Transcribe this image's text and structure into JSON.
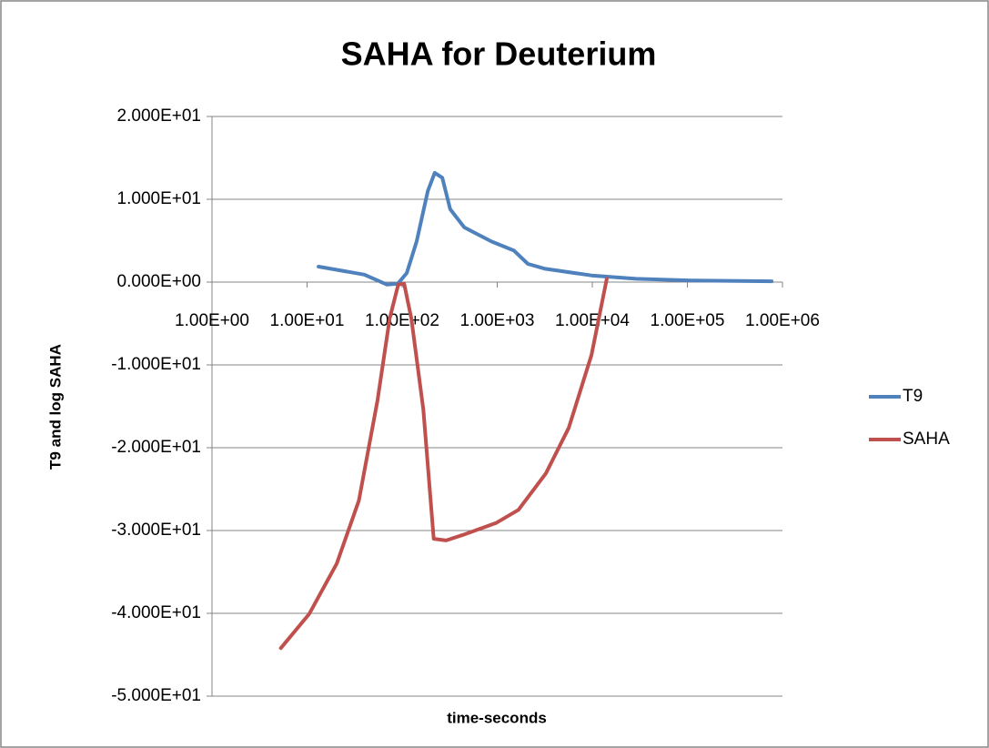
{
  "chart_data": {
    "type": "line",
    "title": "SAHA for Deuterium",
    "x_label": "time-seconds",
    "y_label": "T9 and log SAHA",
    "xscale": "log",
    "xlim": [
      1,
      1000000
    ],
    "xticks": [
      {
        "value": 1,
        "label": "1.00E+00"
      },
      {
        "value": 10,
        "label": "1.00E+01"
      },
      {
        "value": 100,
        "label": "1.00E+02"
      },
      {
        "value": 1000,
        "label": "1.00E+03"
      },
      {
        "value": 10000,
        "label": "1.00E+04"
      },
      {
        "value": 100000,
        "label": "1.00E+05"
      },
      {
        "value": 1000000,
        "label": "1.00E+06"
      }
    ],
    "ylim": [
      -50,
      20
    ],
    "yticks": [
      {
        "value": 20,
        "label": "2.000E+01"
      },
      {
        "value": 10,
        "label": "1.000E+01"
      },
      {
        "value": 0,
        "label": "0.000E+00"
      },
      {
        "value": -10,
        "label": "-1.000E+01"
      },
      {
        "value": -20,
        "label": "-2.000E+01"
      },
      {
        "value": -30,
        "label": "-3.000E+01"
      },
      {
        "value": -40,
        "label": "-4.000E+01"
      },
      {
        "value": -50,
        "label": "-5.000E+01"
      }
    ],
    "grid": true,
    "legend": "right",
    "series": [
      {
        "name": "T9",
        "color": "#4f81bd",
        "x": [
          13.2,
          40,
          69,
          90,
          112,
          142,
          186,
          220,
          264,
          320,
          450,
          870,
          1500,
          2100,
          3200,
          9800,
          29000,
          110000,
          770000
        ],
        "values": [
          1.87,
          0.9,
          -0.3,
          -0.2,
          1.1,
          4.9,
          11,
          13.2,
          12.6,
          8.8,
          6.6,
          4.9,
          3.8,
          2.2,
          1.6,
          0.8,
          0.4,
          0.2,
          0.1
        ]
      },
      {
        "name": "SAHA",
        "color": "#c0504d",
        "x": [
          5.3,
          10.5,
          20.5,
          35,
          55,
          74,
          91,
          105,
          125,
          167,
          215,
          290,
          445,
          970,
          1670,
          3250,
          5650,
          9800,
          14200
        ],
        "values": [
          -44.2,
          -40.1,
          -34,
          -26.4,
          -14.3,
          -4.4,
          -0.3,
          -0.2,
          -4.4,
          -15.4,
          -31,
          -31.2,
          -30.5,
          -29.1,
          -27.5,
          -23.1,
          -17.6,
          -8.8,
          0.4
        ]
      }
    ]
  }
}
